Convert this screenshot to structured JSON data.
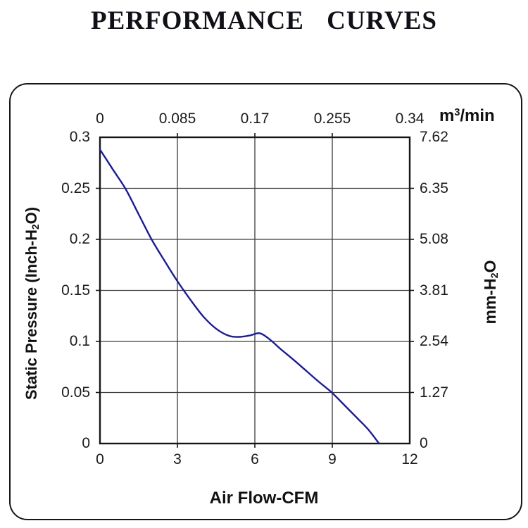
{
  "page": {
    "title": "PERFORMANCE CURVES"
  },
  "colors": {
    "curve": "#1c1c96",
    "grid": "#3c3c3c",
    "frame": "#161616",
    "panel_border": "#161616",
    "text": "#141414"
  },
  "chart_data": {
    "type": "line",
    "title": "PERFORMANCE CURVES",
    "grid": true,
    "axes": {
      "bottom": {
        "label": "Air Flow-CFM",
        "ticks": [
          "0",
          "3",
          "6",
          "9",
          "12"
        ],
        "tick_values": [
          0,
          3,
          6,
          9,
          12
        ],
        "range": [
          0,
          12
        ]
      },
      "top": {
        "label": "m³/min",
        "label_parts": {
          "base": "m",
          "sup": "3",
          "rest": "/min"
        },
        "ticks": [
          "0",
          "0.085",
          "0.17",
          "0.255",
          "0.34"
        ],
        "tick_values": [
          0,
          3,
          6,
          9,
          12
        ]
      },
      "left": {
        "label": "Static Pressure (Inch-H₂O)",
        "label_parts": {
          "pre": "Static Pressure (Inch-H",
          "sub": "2",
          "post": "O)"
        },
        "ticks": [
          "0.3",
          "0.25",
          "0.2",
          "0.15",
          "0.1",
          "0.05",
          "0"
        ],
        "tick_values": [
          0.3,
          0.25,
          0.2,
          0.15,
          0.1,
          0.05,
          0
        ],
        "range": [
          0,
          0.3
        ]
      },
      "right": {
        "label": "mm-H₂O",
        "label_parts": {
          "pre": "mm-H",
          "sub": "2",
          "post": "O"
        },
        "ticks": [
          "7.62",
          "6.35",
          "5.08",
          "3.81",
          "2.54",
          "1.27",
          "0"
        ],
        "tick_values": [
          0.3,
          0.25,
          0.2,
          0.15,
          0.1,
          0.05,
          0
        ]
      }
    },
    "grid_x_values": [
      3,
      6,
      9
    ],
    "grid_y_values": [
      0.05,
      0.1,
      0.15,
      0.2,
      0.25
    ],
    "series": [
      {
        "name": "static pressure vs air flow",
        "color": "#1c1c96",
        "points_cfm_inchH2O": [
          [
            0,
            0.288
          ],
          [
            0.5,
            0.2685
          ],
          [
            1,
            0.249
          ],
          [
            1.5,
            0.2245
          ],
          [
            2,
            0.2
          ],
          [
            2.5,
            0.179
          ],
          [
            3,
            0.159
          ],
          [
            3.5,
            0.141
          ],
          [
            4,
            0.1245
          ],
          [
            4.5,
            0.1125
          ],
          [
            5,
            0.1055
          ],
          [
            5.4,
            0.1045
          ],
          [
            5.8,
            0.1058
          ],
          [
            6.2,
            0.108
          ],
          [
            6.6,
            0.1015
          ],
          [
            7,
            0.0925
          ],
          [
            7.5,
            0.082
          ],
          [
            8,
            0.071
          ],
          [
            8.5,
            0.06
          ],
          [
            9,
            0.0495
          ],
          [
            9.5,
            0.0368
          ],
          [
            10,
            0.024
          ],
          [
            10.4,
            0.0135
          ],
          [
            10.81,
            0
          ]
        ]
      }
    ]
  }
}
